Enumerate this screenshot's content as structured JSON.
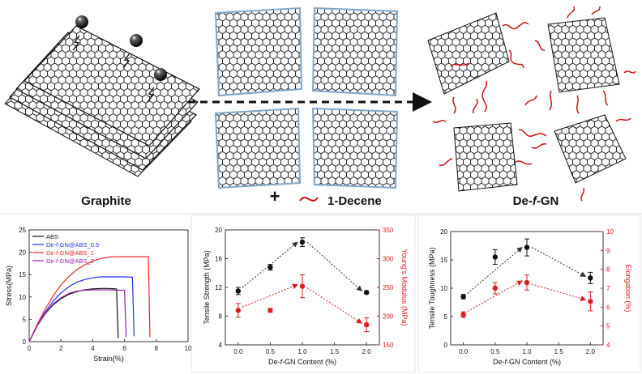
{
  "schematic": {
    "graphite_label": "Graphite",
    "product_label_prefix": "De-",
    "product_label_italic": "f",
    "product_label_suffix": "-GN",
    "plus_sign": "+",
    "reagent_label": "1-Decene",
    "colors": {
      "reagent": "#cc1111",
      "edge": "#7fa6c8",
      "ink": "#111111"
    }
  },
  "charts": {
    "stress_strain": {
      "type": "line",
      "xlabel": "Strain(%)",
      "ylabel": "Stress(MPa)",
      "xlim": [
        0,
        10
      ],
      "ylim": [
        0,
        25
      ],
      "xticks": [
        "0",
        "2",
        "4",
        "6",
        "8",
        "10"
      ],
      "yticks": [
        "0",
        "5",
        "10",
        "15",
        "20",
        "25"
      ],
      "series": [
        {
          "name": "ABS",
          "color": "#111111",
          "x": [
            0,
            0.5,
            1,
            1.5,
            2,
            2.5,
            3,
            3.5,
            4,
            4.5,
            5,
            5.5,
            5.6
          ],
          "y": [
            0,
            3.5,
            6.2,
            8.2,
            9.6,
            10.6,
            11.2,
            11.6,
            11.8,
            11.9,
            11.9,
            11.8,
            0.8
          ]
        },
        {
          "name": "De-f-GN@ABS_0.5",
          "color": "#2233ee",
          "x": [
            0,
            0.5,
            1,
            1.5,
            2,
            2.5,
            3,
            3.5,
            4,
            4.5,
            5,
            5.5,
            6,
            6.5,
            6.6
          ],
          "y": [
            0,
            3.6,
            6.6,
            9.0,
            10.9,
            12.3,
            13.3,
            13.9,
            14.3,
            14.5,
            14.5,
            14.5,
            14.5,
            14.4,
            1.2
          ]
        },
        {
          "name": "De-f-GN@ABS_1",
          "color": "#ee2222",
          "x": [
            0,
            0.5,
            1,
            1.5,
            2,
            2.5,
            3,
            3.5,
            4,
            4.5,
            5,
            5.5,
            6,
            6.5,
            7,
            7.5,
            7.6
          ],
          "y": [
            0,
            3.8,
            7.2,
            10.2,
            12.7,
            14.6,
            16.1,
            17.2,
            18.0,
            18.6,
            18.9,
            19.0,
            19.0,
            19.0,
            19.0,
            19.0,
            1.0
          ]
        },
        {
          "name": "De-f-GN@ABS_2",
          "color": "#9922aa",
          "x": [
            0,
            0.5,
            1,
            1.5,
            2,
            2.5,
            3,
            3.5,
            4,
            4.5,
            5,
            5.5,
            6,
            6.1
          ],
          "y": [
            0,
            3.5,
            6.3,
            8.4,
            9.8,
            10.8,
            11.3,
            11.5,
            11.6,
            11.6,
            11.6,
            11.5,
            11.5,
            1.0
          ]
        }
      ]
    },
    "strength_modulus": {
      "type": "scatter",
      "xlabel_prefix": "De-",
      "xlabel_italic": "f",
      "xlabel_suffix": "-GN Content (%)",
      "ylabel_left": "Tensile Strength (MPa)",
      "ylabel_right": "Young's Modulus (MPa)",
      "xlim": [
        -0.2,
        2.2
      ],
      "ylim_left": [
        4,
        20
      ],
      "ylim_right": [
        150,
        350
      ],
      "xticks": [
        "0.0",
        "0.5",
        "1.0",
        "1.5",
        "2.0"
      ],
      "yticks_left": [
        "4",
        "8",
        "12",
        "16",
        "20"
      ],
      "yticks_right": [
        "150",
        "200",
        "250",
        "300",
        "350"
      ],
      "left_series": {
        "color": "#111111",
        "x": [
          0,
          0.5,
          1,
          2
        ],
        "y": [
          11.5,
          14.8,
          18.3,
          11.3
        ],
        "err": [
          0.5,
          0.4,
          0.6,
          0.2
        ]
      },
      "right_series": {
        "color": "#e01b1b",
        "x": [
          0,
          0.5,
          1,
          2
        ],
        "y": [
          210,
          210,
          252,
          185
        ],
        "err": [
          12,
          0,
          20,
          12
        ]
      }
    },
    "toughness_elongation": {
      "type": "scatter",
      "xlabel_prefix": "De-",
      "xlabel_italic": "f",
      "xlabel_suffix": "-GN Content (%)",
      "ylabel_left": "Tensile Toughness (MPa)",
      "ylabel_right": "Elongation (%)",
      "xlim": [
        -0.2,
        2.2
      ],
      "ylim_left": [
        0,
        20
      ],
      "ylim_right": [
        4,
        10
      ],
      "xticks": [
        "0.0",
        "0.5",
        "1.0",
        "1.5",
        "2.0"
      ],
      "yticks_left": [
        "0",
        "5",
        "10",
        "15",
        "20"
      ],
      "yticks_right": [
        "4",
        "5",
        "6",
        "7",
        "8",
        "9",
        "10"
      ],
      "left_series": {
        "color": "#111111",
        "x": [
          0,
          0.5,
          1,
          2
        ],
        "y": [
          8.5,
          15.5,
          17.2,
          11.8
        ],
        "err": [
          0.4,
          1.3,
          1.5,
          1.0
        ]
      },
      "right_series": {
        "color": "#e01b1b",
        "x": [
          0,
          0.5,
          1,
          2
        ],
        "y": [
          5.6,
          7.0,
          7.3,
          6.3
        ],
        "err": [
          0.15,
          0.3,
          0.4,
          0.5
        ]
      }
    }
  }
}
